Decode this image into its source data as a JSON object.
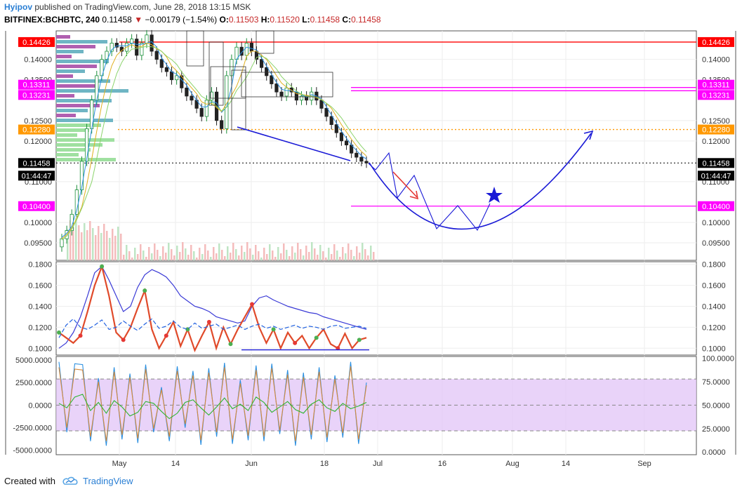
{
  "header": {
    "author": "Hyipov",
    "published_text": "published on TradingView.com, June 28, 2018 13:15 MSK",
    "symbol": "BITFINEX:BCHBTC, 240",
    "last": "0.11458",
    "change_arrow": "▼",
    "change": "−0.00179 (−1.54%)",
    "o_label": "O:",
    "o_value": "0.11503",
    "h_label": "H:",
    "h_value": "0.11520",
    "l_label": "L:",
    "l_value": "0.11458",
    "c_label": "C:",
    "c_value": "0.11458"
  },
  "footer": {
    "created_with": "Created with",
    "brand": "TradingView",
    "icon": "tradingview-cloud-icon"
  },
  "colors": {
    "red_level": "#ff0000",
    "magenta_level": "#ff00ff",
    "orange_level": "#ff9800",
    "last_tag": "#000000",
    "projection": "#1a1ad6",
    "stoch_band": "#e1c4f7"
  },
  "chart_data": [
    {
      "type": "candlestick",
      "panel": "price",
      "x_ticks": [
        "May",
        "14",
        "Jun",
        "18",
        "Jul",
        "16",
        "Aug",
        "14",
        "Sep"
      ],
      "y_ticks": [
        "0.14000",
        "0.13500",
        "0.12500",
        "0.12000",
        "0.11000",
        "0.10000",
        "0.09500"
      ],
      "ylim": [
        0.0907,
        0.147
      ],
      "price_tags_left": [
        "0.14426",
        "0.13311",
        "0.13231",
        "0.12280",
        "0.11458",
        "01:44:47",
        "0.10400"
      ],
      "price_tags_right": [
        "0.14426",
        "0.13311",
        "0.13231",
        "0.12280",
        "0.11458",
        "01:44:47",
        "0.10400"
      ],
      "levels": [
        {
          "value": 0.14426,
          "color": "red",
          "style": "solid"
        },
        {
          "value": 0.13311,
          "color": "magenta",
          "style": "solid"
        },
        {
          "value": 0.13231,
          "color": "magenta",
          "style": "solid"
        },
        {
          "value": 0.1228,
          "color": "orange",
          "style": "dotted"
        },
        {
          "value": 0.11458,
          "color": "black",
          "style": "dotted"
        },
        {
          "value": 0.104,
          "color": "magenta",
          "style": "solid"
        }
      ],
      "closes": [
        0.096,
        0.098,
        0.102,
        0.108,
        0.115,
        0.123,
        0.13,
        0.136,
        0.14,
        0.142,
        0.144,
        0.143,
        0.142,
        0.144,
        0.145,
        0.141,
        0.144,
        0.146,
        0.142,
        0.14,
        0.138,
        0.137,
        0.135,
        0.136,
        0.133,
        0.131,
        0.13,
        0.128,
        0.126,
        0.13,
        0.132,
        0.125,
        0.123,
        0.136,
        0.14,
        0.143,
        0.141,
        0.144,
        0.142,
        0.14,
        0.138,
        0.136,
        0.134,
        0.132,
        0.131,
        0.133,
        0.132,
        0.13,
        0.131,
        0.13,
        0.132,
        0.13,
        0.128,
        0.126,
        0.124,
        0.122,
        0.12,
        0.119,
        0.117,
        0.116,
        0.115,
        0.11458
      ]
    },
    {
      "type": "line",
      "panel": "oscillator",
      "y_ticks": [
        "0.1800",
        "0.1600",
        "0.1400",
        "0.1200",
        "0.1000"
      ],
      "ylim": [
        0.0935,
        0.1825
      ],
      "series": [
        {
          "values": [
            0.1,
            0.105,
            0.115,
            0.13,
            0.15,
            0.172,
            0.178,
            0.165,
            0.15,
            0.135,
            0.14,
            0.158,
            0.17,
            0.175,
            0.172,
            0.168,
            0.16,
            0.15,
            0.145,
            0.14,
            0.138,
            0.135,
            0.13,
            0.128,
            0.126,
            0.124,
            0.126,
            0.14,
            0.148,
            0.15,
            0.146,
            0.143,
            0.14,
            0.138,
            0.136,
            0.134,
            0.133,
            0.13,
            0.128,
            0.126,
            0.124,
            0.122,
            0.12,
            0.118
          ]
        },
        {
          "values": [
            0.115,
            0.11,
            0.105,
            0.112,
            0.135,
            0.16,
            0.178,
            0.15,
            0.115,
            0.108,
            0.12,
            0.138,
            0.155,
            0.118,
            0.1,
            0.112,
            0.125,
            0.102,
            0.118,
            0.098,
            0.112,
            0.125,
            0.1,
            0.12,
            0.104,
            0.118,
            0.13,
            0.142,
            0.12,
            0.105,
            0.118,
            0.1,
            0.115,
            0.105,
            0.112,
            0.1,
            0.11,
            0.118,
            0.104,
            0.1,
            0.114,
            0.1,
            0.108,
            0.11
          ]
        },
        {
          "values": [
            0.11,
            0.122,
            0.128,
            0.12,
            0.118,
            0.122,
            0.127,
            0.118,
            0.12,
            0.126,
            0.121,
            0.117,
            0.123,
            0.128,
            0.119,
            0.121,
            0.126,
            0.12,
            0.118,
            0.124,
            0.119,
            0.121,
            0.123,
            0.118,
            0.12,
            0.122,
            0.118,
            0.121,
            0.123,
            0.119,
            0.121,
            0.118,
            0.12,
            0.122,
            0.119,
            0.121,
            0.12,
            0.118,
            0.121,
            0.122,
            0.119,
            0.12,
            0.121,
            0.119
          ]
        }
      ],
      "support_value": 0.0985
    },
    {
      "type": "line",
      "panel": "stochastic",
      "y_ticks_left": [
        "5000.0000",
        "2500.0000",
        "0.0000",
        "-2500.0000",
        "-5000.0000"
      ],
      "y_ticks_right": [
        "100.0000",
        "75.0000",
        "50.0000",
        "25.0000",
        "0.0000"
      ],
      "ylim": [
        -5500,
        5400
      ],
      "band_levels": [
        2900,
        0,
        -2850
      ],
      "series": [
        {
          "values": [
            4800,
            -3000,
            4600,
            4500,
            -4000,
            3000,
            -4500,
            4200,
            -3800,
            3500,
            -4200,
            4500,
            -3000,
            2000,
            -4000,
            4300,
            -2500,
            3800,
            -4400,
            4100,
            -3500,
            4700,
            -4300,
            2800,
            -3900,
            4400,
            -4000,
            4600,
            -3200,
            3900,
            -4500,
            3600,
            -3800,
            4200,
            -4100,
            3300,
            -3600,
            4800,
            -4300,
            2500
          ]
        },
        {
          "values": [
            4200,
            -2500,
            4000,
            3900,
            -3500,
            2600,
            -4000,
            3700,
            -3300,
            3100,
            -3700,
            4000,
            -2600,
            1700,
            -3500,
            3800,
            -2100,
            3300,
            -3900,
            3600,
            -3000,
            4200,
            -3800,
            2400,
            -3400,
            3900,
            -3500,
            4100,
            -2800,
            3400,
            -4000,
            3100,
            -3300,
            3700,
            -3600,
            2900,
            -3100,
            4300,
            -3800,
            2200
          ]
        },
        {
          "values": [
            200,
            -300,
            900,
            1200,
            -600,
            300,
            -900,
            500,
            -200,
            -1200,
            -800,
            400,
            200,
            -700,
            -1500,
            -900,
            300,
            600,
            -300,
            -1100,
            -200,
            800,
            -400,
            100,
            -600,
            900,
            300,
            -800,
            -200,
            400,
            -500,
            -900,
            100,
            600,
            -300,
            -700,
            200,
            -400,
            -100,
            300
          ]
        }
      ]
    }
  ]
}
